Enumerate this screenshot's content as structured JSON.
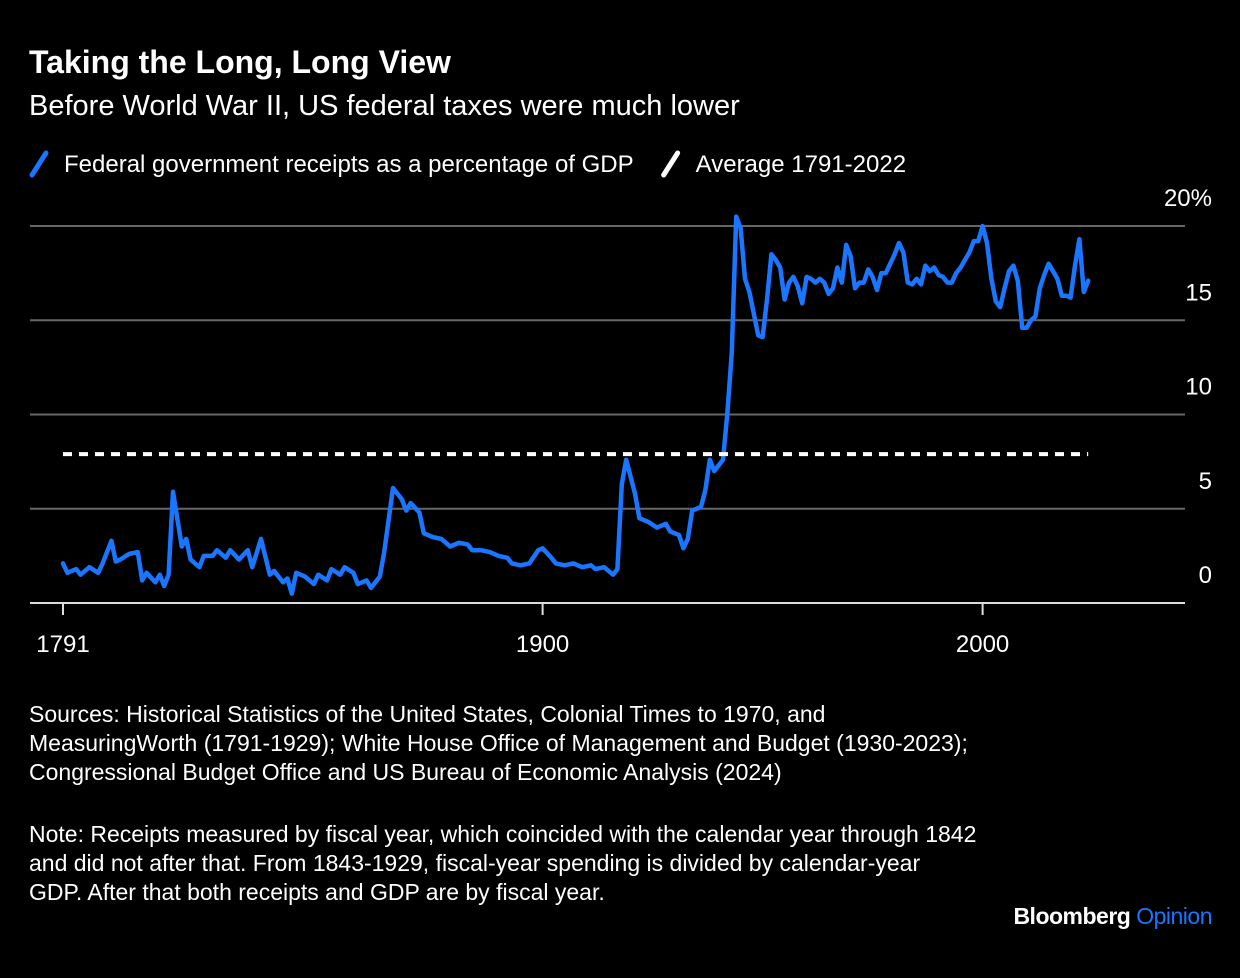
{
  "chart_data": {
    "type": "line",
    "title": "Taking the Long, Long View",
    "subtitle": "Before World War II, US federal taxes were much lower",
    "series": [
      {
        "name": "Federal government receipts as a percentage of GDP",
        "color": "#1a75ff",
        "style": "solid",
        "x": [
          1791,
          1792,
          1794,
          1795,
          1797,
          1799,
          1800,
          1802,
          1803,
          1804,
          1806,
          1808,
          1809,
          1810,
          1812,
          1813,
          1814,
          1815,
          1816,
          1818,
          1819,
          1820,
          1822,
          1823,
          1825,
          1826,
          1828,
          1829,
          1831,
          1833,
          1834,
          1836,
          1838,
          1839,
          1841,
          1842,
          1843,
          1844,
          1846,
          1848,
          1849,
          1851,
          1852,
          1854,
          1855,
          1857,
          1858,
          1860,
          1861,
          1863,
          1864,
          1866,
          1868,
          1869,
          1870,
          1872,
          1873,
          1875,
          1877,
          1879,
          1881,
          1883,
          1884,
          1886,
          1888,
          1890,
          1892,
          1893,
          1895,
          1897,
          1899,
          1900,
          1902,
          1903,
          1905,
          1907,
          1909,
          1911,
          1912,
          1914,
          1916,
          1917,
          1918,
          1919,
          1921,
          1922,
          1924,
          1926,
          1928,
          1929,
          1931,
          1932,
          1933,
          1934,
          1936,
          1937,
          1938,
          1939,
          1941,
          1942,
          1943,
          1944,
          1945,
          1946,
          1947,
          1949,
          1950,
          1951,
          1952,
          1953,
          1954,
          1955,
          1956,
          1957,
          1958,
          1959,
          1960,
          1961,
          1962,
          1963,
          1964,
          1965,
          1966,
          1967,
          1968,
          1969,
          1970,
          1971,
          1972,
          1973,
          1974,
          1975,
          1976,
          1977,
          1978,
          1979,
          1980,
          1981,
          1982,
          1983,
          1984,
          1985,
          1986,
          1987,
          1988,
          1989,
          1990,
          1991,
          1992,
          1993,
          1994,
          1995,
          1996,
          1997,
          1998,
          1999,
          2000,
          2001,
          2002,
          2003,
          2004,
          2005,
          2006,
          2007,
          2008,
          2009,
          2010,
          2011,
          2012,
          2013,
          2014,
          2015,
          2016,
          2017,
          2018,
          2019,
          2020,
          2021,
          2022,
          2023,
          2024
        ],
        "values": [
          2.1,
          1.6,
          1.8,
          1.5,
          1.9,
          1.6,
          2.1,
          3.3,
          2.2,
          2.3,
          2.6,
          2.7,
          1.2,
          1.6,
          1.1,
          1.5,
          0.9,
          1.5,
          5.9,
          3.0,
          3.4,
          2.3,
          1.9,
          2.5,
          2.5,
          2.8,
          2.4,
          2.8,
          2.3,
          2.8,
          1.9,
          3.4,
          1.5,
          1.7,
          1.1,
          1.3,
          0.5,
          1.6,
          1.4,
          1.0,
          1.5,
          1.2,
          1.8,
          1.5,
          1.9,
          1.6,
          1.0,
          1.2,
          0.8,
          1.4,
          2.7,
          6.1,
          5.5,
          4.9,
          5.3,
          4.8,
          3.7,
          3.5,
          3.4,
          3.0,
          3.2,
          3.1,
          2.8,
          2.8,
          2.7,
          2.5,
          2.4,
          2.1,
          2.0,
          2.1,
          2.8,
          2.9,
          2.4,
          2.1,
          2.0,
          2.1,
          1.9,
          2.0,
          1.8,
          1.9,
          1.5,
          1.8,
          6.3,
          7.6,
          5.8,
          4.5,
          4.3,
          4.0,
          4.2,
          3.8,
          3.6,
          2.9,
          3.4,
          4.9,
          5.1,
          6.0,
          7.6,
          7.0,
          7.6,
          10.1,
          13.3,
          20.5,
          19.9,
          17.2,
          16.5,
          14.2,
          14.1,
          16.1,
          18.5,
          18.2,
          17.8,
          16.1,
          17.0,
          17.3,
          16.8,
          15.9,
          17.3,
          17.2,
          17.0,
          17.2,
          17.0,
          16.4,
          16.7,
          17.8,
          17.0,
          19.0,
          18.4,
          16.7,
          17.0,
          17.0,
          17.7,
          17.3,
          16.6,
          17.5,
          17.5,
          18.0,
          18.5,
          19.1,
          18.6,
          17.0,
          16.9,
          17.2,
          16.9,
          17.9,
          17.6,
          17.8,
          17.4,
          17.3,
          17.0,
          17.0,
          17.5,
          17.8,
          18.2,
          18.6,
          19.2,
          19.2,
          20.0,
          19.1,
          17.2,
          16.0,
          15.7,
          16.7,
          17.6,
          17.9,
          17.1,
          14.6,
          14.6,
          15.0,
          15.2,
          16.7,
          17.4,
          18.0,
          17.6,
          17.2,
          16.3,
          16.3,
          16.2,
          17.9,
          19.3,
          16.5,
          17.1
        ]
      },
      {
        "name": "Average 1791-2022",
        "color": "#ffffff",
        "style": "dashed",
        "x": [
          1791,
          2024
        ],
        "values": [
          7.9,
          7.9
        ]
      }
    ],
    "xlim": [
      1783.5,
      2046
    ],
    "xticks": [
      1791,
      1900,
      2000
    ],
    "ylim": [
      0,
      20
    ],
    "yticks": [
      0,
      5,
      10,
      15,
      {
        "value": 20,
        "label": "20%"
      }
    ],
    "grid": true,
    "sources": "Sources: Historical Statistics of the United States, Colonial Times to 1970, and MeasuringWorth (1791-1929); White House Office of Management and Budget (1930-2023); Congressional Budget Office and US Bureau of Economic Analysis (2024)",
    "note": "Note: Receipts measured by fiscal year, which coincided with the calendar year through 1842 and did not after that. From 1843-1929, fiscal-year spending is divided by calendar-year GDP. After that both receipts and GDP are by fiscal year.",
    "brand": {
      "name": "Bloomberg",
      "section": "Opinion"
    }
  }
}
